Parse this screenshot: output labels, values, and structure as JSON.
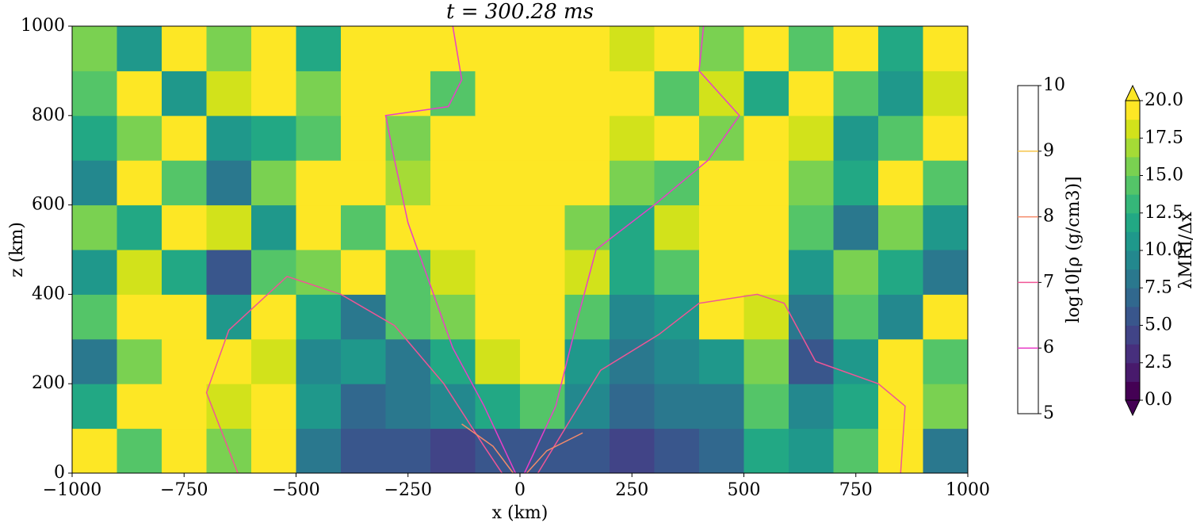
{
  "chart_data": {
    "type": "heatmap",
    "title": "t = 300.28 ms",
    "x_label": "x (km)",
    "y_label": "z (km)",
    "xlim": [
      -1000,
      1000
    ],
    "ylim": [
      0,
      1000
    ],
    "xticks": [
      {
        "value": -1000,
        "label": "−1000"
      },
      {
        "value": -750,
        "label": "−750"
      },
      {
        "value": -500,
        "label": "−500"
      },
      {
        "value": -250,
        "label": "−250"
      },
      0,
      250,
      500,
      750,
      1000
    ],
    "yticks": [
      0,
      200,
      400,
      600,
      800,
      1000
    ],
    "x_edges": [
      -1000,
      -900,
      -800,
      -700,
      -600,
      -500,
      -400,
      -300,
      -200,
      -100,
      0,
      100,
      200,
      300,
      400,
      500,
      600,
      700,
      800,
      900,
      1000
    ],
    "y_edges": [
      0,
      100,
      200,
      300,
      400,
      500,
      600,
      700,
      800,
      900,
      1000
    ],
    "values": [
      [
        20,
        14,
        20,
        16,
        20,
        8,
        6,
        5,
        4,
        6,
        6,
        5,
        4,
        6,
        7,
        12,
        10,
        14,
        20,
        8
      ],
      [
        12,
        20,
        20,
        18,
        20,
        10,
        7,
        8,
        9,
        12,
        14,
        9,
        7,
        8,
        8,
        14,
        9,
        12,
        20,
        16
      ],
      [
        8,
        16,
        20,
        20,
        18,
        9,
        10,
        8,
        12,
        18,
        20,
        10,
        8,
        9,
        10,
        16,
        6,
        10,
        20,
        14
      ],
      [
        14,
        20,
        20,
        10,
        20,
        12,
        8,
        14,
        16,
        20,
        20,
        14,
        9,
        10,
        20,
        18,
        8,
        14,
        9,
        20
      ],
      [
        10,
        18,
        12,
        6,
        14,
        16,
        20,
        14,
        18,
        20,
        20,
        18,
        12,
        14,
        20,
        20,
        10,
        16,
        12,
        8
      ],
      [
        16,
        12,
        20,
        18,
        10,
        20,
        14,
        20,
        20,
        20,
        20,
        16,
        12,
        18,
        20,
        20,
        14,
        8,
        16,
        10
      ],
      [
        9,
        20,
        14,
        8,
        16,
        20,
        20,
        17,
        20,
        20,
        20,
        20,
        16,
        14,
        20,
        20,
        16,
        12,
        20,
        14
      ],
      [
        12,
        16,
        20,
        10,
        12,
        14,
        20,
        16,
        20,
        20,
        20,
        20,
        18,
        20,
        16,
        20,
        18,
        10,
        14,
        20
      ],
      [
        14,
        20,
        10,
        18,
        20,
        16,
        20,
        20,
        14,
        20,
        20,
        20,
        20,
        14,
        18,
        12,
        20,
        14,
        10,
        18
      ],
      [
        16,
        10,
        20,
        16,
        20,
        12,
        20,
        20,
        20,
        20,
        20,
        20,
        18,
        20,
        16,
        20,
        14,
        20,
        12,
        20
      ]
    ],
    "colorbar": {
      "label": "λMRI/Δx",
      "clim": [
        0,
        20
      ],
      "ticks": [
        {
          "value": 0,
          "label": "0.0"
        },
        2.5,
        {
          "value": 5,
          "label": "5.0"
        },
        7.5,
        {
          "value": 10,
          "label": "10.0"
        },
        12.5,
        {
          "value": 15,
          "label": "15.0"
        },
        17.5,
        {
          "value": 20,
          "label": "20.0"
        }
      ],
      "colors": [
        "#440154",
        "#481a6c",
        "#472f7d",
        "#414487",
        "#39568c",
        "#31688e",
        "#2a788e",
        "#23888e",
        "#1f988b",
        "#22a884",
        "#35b779",
        "#54c568",
        "#7ad151",
        "#a5db36",
        "#d2e21b",
        "#fde725"
      ]
    },
    "contour_bar": {
      "label": "log10[ρ (g/cm3)]",
      "lim": [
        5,
        10
      ],
      "ticks": [
        5,
        6,
        7,
        8,
        9,
        10
      ],
      "levels": [
        6,
        7,
        8,
        9
      ],
      "colors": [
        "#e83fc8",
        "#f05596",
        "#f48a6a",
        "#f6c448"
      ]
    },
    "contours": [
      {
        "level": 6,
        "x": [
          -10,
          -80,
          -150,
          -200,
          -250,
          -280,
          -300,
          -160,
          -130,
          -150
        ],
        "z": [
          0,
          150,
          280,
          420,
          560,
          700,
          800,
          820,
          880,
          1000
        ]
      },
      {
        "level": 6,
        "x": [
          10,
          80,
          130,
          170,
          300,
          420,
          490,
          400,
          410
        ],
        "z": [
          0,
          150,
          350,
          500,
          600,
          700,
          800,
          900,
          1000
        ]
      },
      {
        "level": 7,
        "x": [
          -630,
          -700,
          -650,
          -520,
          -400,
          -280,
          -170,
          -80,
          -40
        ],
        "z": [
          0,
          180,
          320,
          440,
          400,
          330,
          200,
          60,
          0
        ]
      },
      {
        "level": 7,
        "x": [
          40,
          180,
          310,
          400,
          530,
          590,
          660,
          800,
          860,
          850
        ],
        "z": [
          0,
          230,
          310,
          380,
          400,
          380,
          250,
          200,
          150,
          0
        ]
      },
      {
        "level": 8,
        "x": [
          -15,
          -60,
          -130
        ],
        "z": [
          0,
          60,
          110
        ]
      },
      {
        "level": 8,
        "x": [
          15,
          60,
          140
        ],
        "z": [
          0,
          50,
          90
        ]
      }
    ]
  }
}
